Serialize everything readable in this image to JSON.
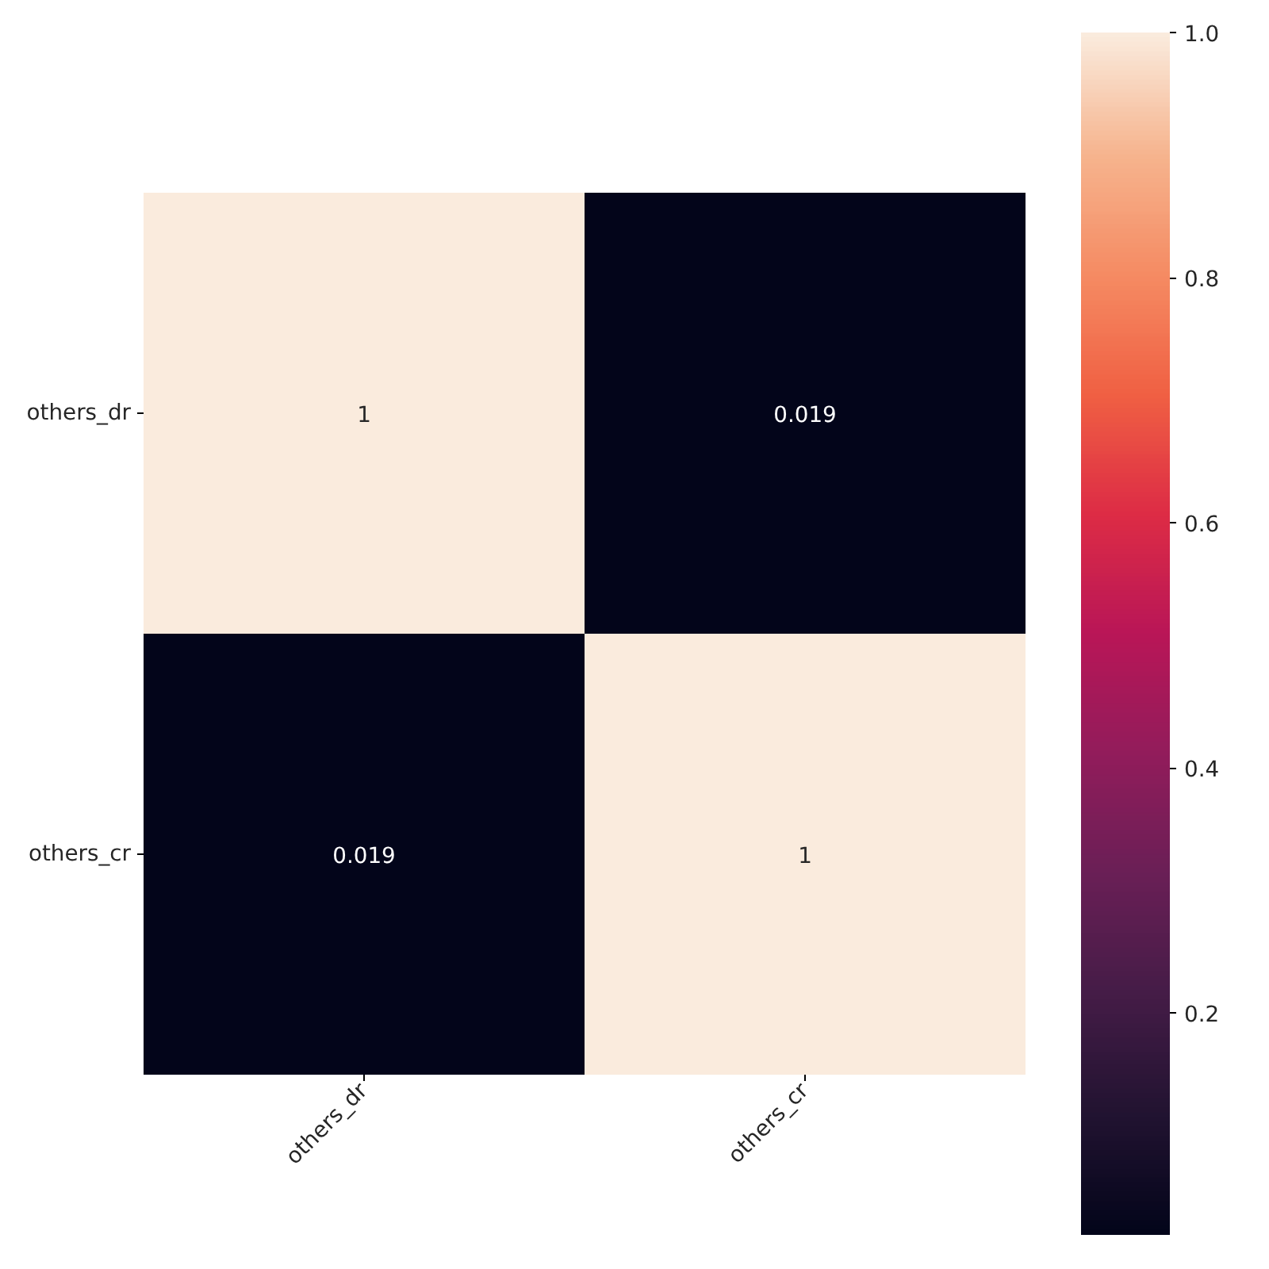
{
  "chart_data": {
    "type": "heatmap",
    "categories": [
      "others_dr",
      "others_cr"
    ],
    "y_categories": [
      "others_dr",
      "others_cr"
    ],
    "cells": [
      [
        1,
        0.019
      ],
      [
        0.019,
        1
      ]
    ],
    "data_labels": true,
    "clim": [
      0.019,
      1
    ],
    "cticks": [
      0.2,
      0.4,
      0.6,
      0.8,
      {
        "value": 1,
        "label": "1.0"
      }
    ]
  }
}
